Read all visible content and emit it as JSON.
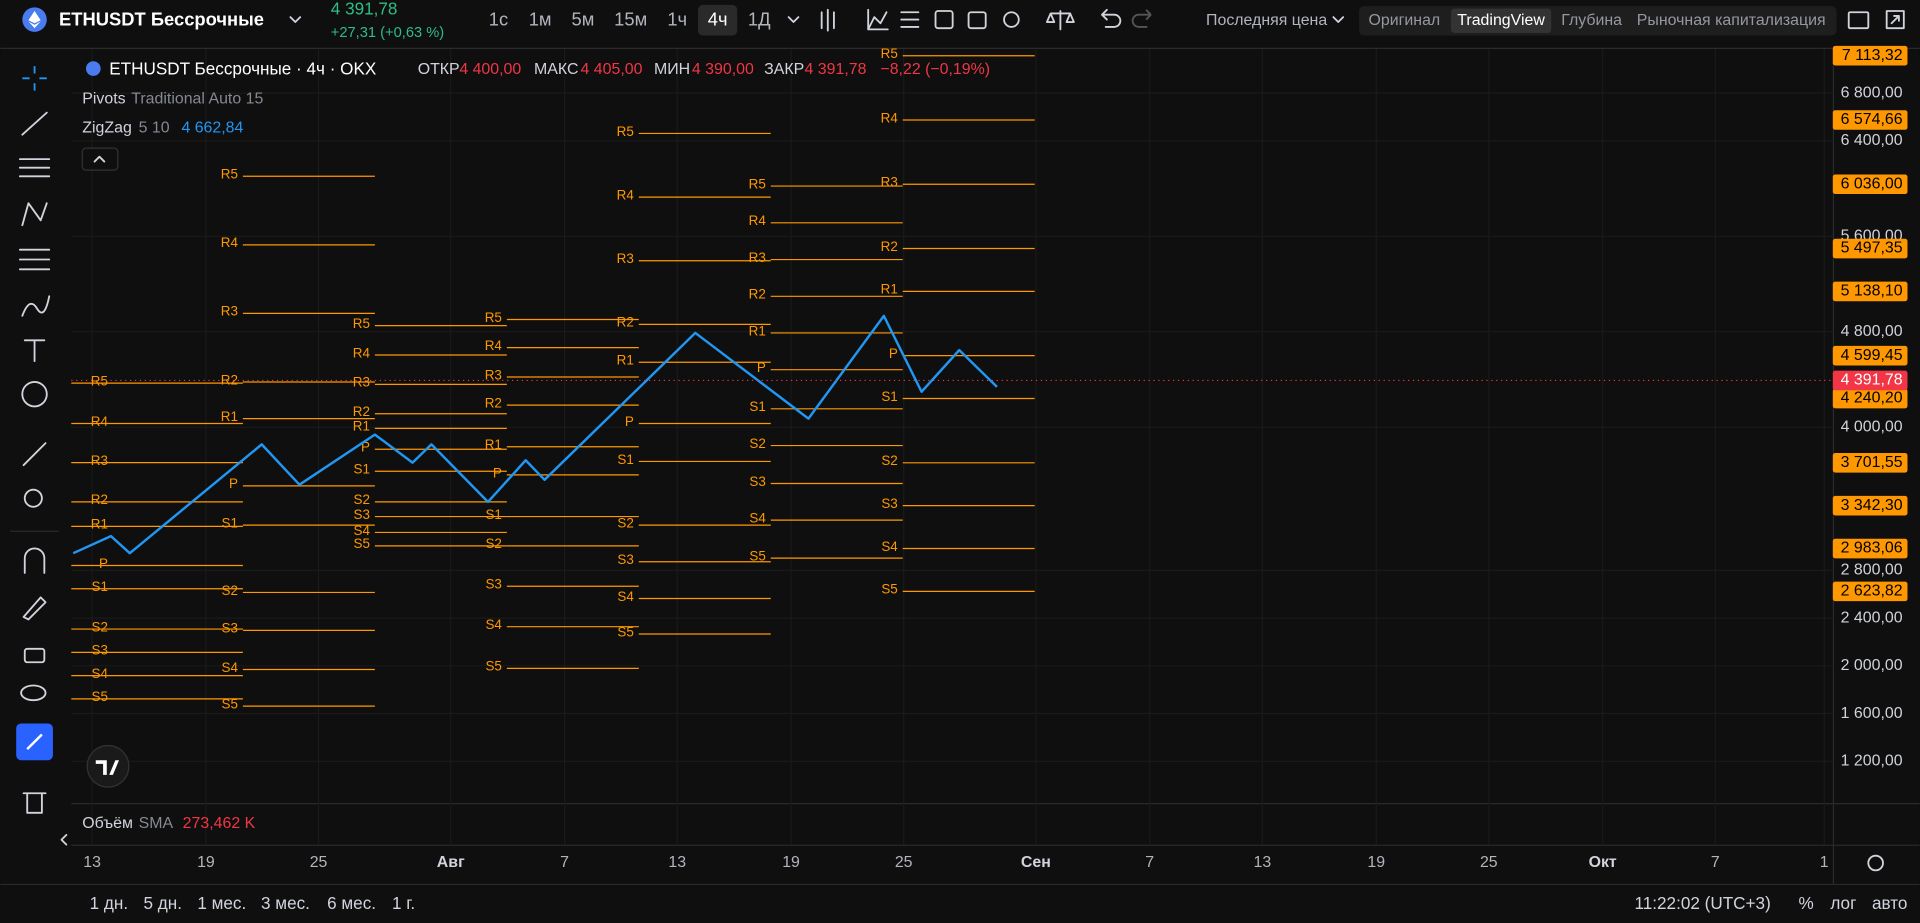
{
  "header": {
    "symbol": "ETHUSDT Бессрочные",
    "price": "4 391,78",
    "change": "+27,31 (+0,63 %)",
    "intervals": [
      "1с",
      "1м",
      "5м",
      "15м",
      "1ч",
      "4ч",
      "1Д"
    ],
    "active_interval": "4ч",
    "price_source": "Последняя цена",
    "views": [
      "Оригинал",
      "TradingView",
      "Глубина",
      "Рыночная капитализация"
    ],
    "active_view": "TradingView"
  },
  "legend": {
    "title": "ETHUSDT Бессрочные · 4ч · OKX",
    "ohlc": [
      {
        "label": "ОТКР",
        "value": "4 400,00"
      },
      {
        "label": "МАКС",
        "value": "4 405,00"
      },
      {
        "label": "МИН",
        "value": "4 390,00"
      },
      {
        "label": "ЗАКР",
        "value": "4 391,78"
      }
    ],
    "change": "−8,22 (−0,19%)"
  },
  "indicators": [
    {
      "name": "Pivots",
      "params": "Traditional Auto 15"
    },
    {
      "name": "ZigZag",
      "params": "5 10",
      "value": "4 662,84"
    }
  ],
  "volume": {
    "name": "Объём",
    "ma": "SMA",
    "value": "273,462 K"
  },
  "chart": {
    "ylim": [
      850,
      7170
    ],
    "yticks": [
      {
        "value": 6800,
        "label": "6 800,00"
      },
      {
        "value": 6400,
        "label": "6 400,00"
      },
      {
        "value": 5600,
        "label": "5 600,00"
      },
      {
        "value": 4800,
        "label": "4 800,00"
      },
      {
        "value": 4000,
        "label": "4 000,00"
      },
      {
        "value": 2800,
        "label": "2 800,00"
      },
      {
        "value": 2400,
        "label": "2 400,00"
      },
      {
        "value": 2000,
        "label": "2 000,00"
      },
      {
        "value": 1600,
        "label": "1 600,00"
      },
      {
        "value": 1200,
        "label": "1 200,00"
      }
    ],
    "xticks": [
      "13",
      "19",
      "25",
      "Авг",
      "7",
      "13",
      "19",
      "25",
      "Сен",
      "7",
      "13",
      "19",
      "25",
      "Окт",
      "7",
      "1"
    ],
    "pivot_levels": [
      "R5",
      "R4",
      "R3",
      "R2",
      "R1",
      "P",
      "S1",
      "S2",
      "S3",
      "S4",
      "S5"
    ],
    "pivot_color": "#ff9800",
    "pivots": [
      {
        "start": "07-07",
        "values": [
          4369,
          4031,
          3703,
          3374,
          3169,
          2841,
          2646,
          2308,
          2113,
          1918,
          1723
        ]
      },
      {
        "start": "07-21",
        "values": [
          6103,
          5528,
          4954,
          4379,
          4072,
          3508,
          3179,
          2615,
          2297,
          1969,
          1662
        ]
      },
      {
        "start": "07-28",
        "values": [
          4851,
          4605,
          4359,
          4113,
          3990,
          3815,
          3631,
          3374,
          3251,
          3118,
          3005
        ]
      },
      {
        "start": "08-04",
        "values": [
          4903,
          4667,
          4421,
          4185,
          3836,
          3600,
          3251,
          3005,
          2667,
          2328,
          1979
        ]
      },
      {
        "start": "08-11",
        "values": [
          6462,
          5928,
          5395,
          4862,
          4544,
          4031,
          3713,
          3179,
          2872,
          2564,
          2267
        ]
      },
      {
        "start": "08-18",
        "values": [
          6021,
          5713,
          5405,
          5097,
          4790,
          4482,
          4154,
          3846,
          3528,
          3221,
          2903
        ]
      },
      {
        "start": "08-25",
        "values": [
          7113.32,
          6574.66,
          6036.0,
          5497.35,
          5138.1,
          4599.45,
          4240.2,
          3701.55,
          3342.3,
          2983.06,
          2623.82
        ],
        "value_labels": [
          "7 113,32",
          "6 574,66",
          "6 036,00",
          "5 497,35",
          "5 138,10",
          "4 599,45",
          "4 240,20",
          "3 701,55",
          "3 342,30",
          "2 983,06",
          "2 623,82"
        ]
      }
    ],
    "pivots_end": "09-01",
    "zigzag": {
      "color": "#2196f3",
      "x": [
        "07-12",
        "07-14",
        "07-15",
        "07-22",
        "07-24",
        "07-28",
        "07-30",
        "07-31",
        "08-03",
        "08-05",
        "08-06",
        "08-14",
        "08-20",
        "08-24",
        "08-26",
        "08-28",
        "08-30"
      ],
      "values": [
        2944,
        3087,
        2944,
        3856,
        3518,
        3938,
        3703,
        3856,
        3374,
        3723,
        3559,
        4790,
        4072,
        4933,
        4297,
        4646,
        4338
      ]
    },
    "last_price": {
      "value": 4391.78,
      "label": "4 391,78",
      "color": "#f23645"
    }
  },
  "footer": {
    "ranges": [
      "1 дн.",
      "5 дн.",
      "1 мес.",
      "3 мес.",
      "6 мес.",
      "1 г."
    ],
    "time": "11:22:02 (UTC+3)",
    "scale_options": [
      "%",
      "лог",
      "авто"
    ]
  }
}
